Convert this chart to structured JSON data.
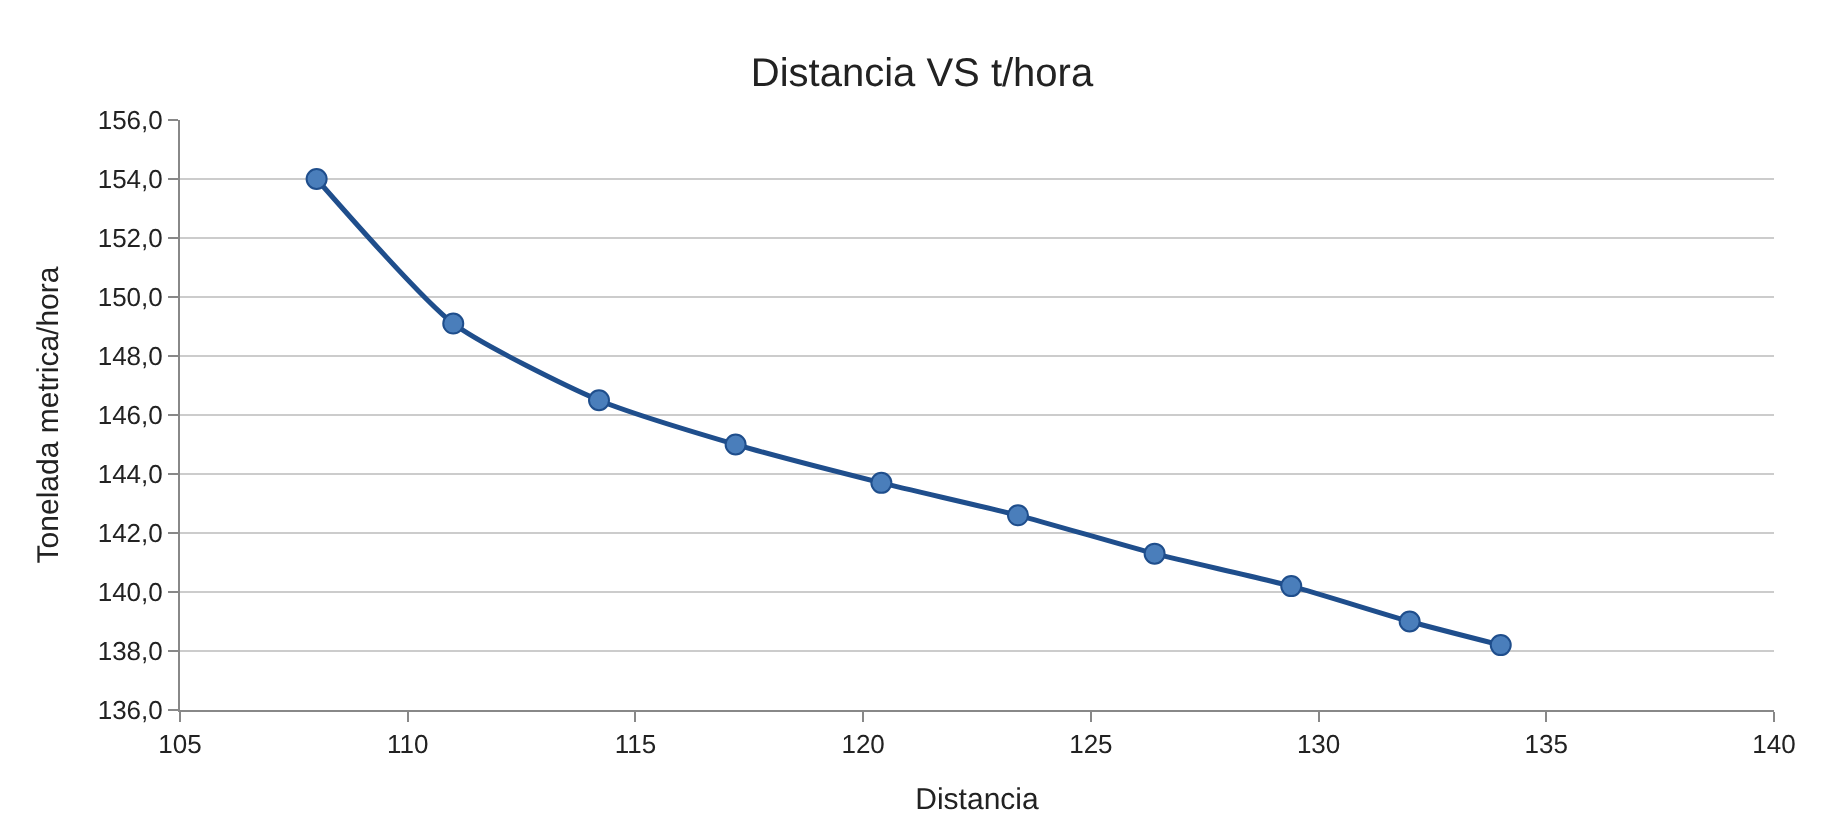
{
  "chart_data": {
    "type": "line",
    "title": "Distancia VS t/hora",
    "xlabel": "Distancia",
    "ylabel": "Tonelada metrica/hora",
    "x": [
      108.0,
      111.0,
      114.2,
      117.2,
      120.4,
      123.4,
      126.4,
      129.4,
      132.0,
      134.0
    ],
    "series": [
      {
        "color": "#1f4e8c",
        "values": [
          154.0,
          149.1,
          146.5,
          145.0,
          143.7,
          142.6,
          141.3,
          140.2,
          139.0,
          138.2
        ]
      }
    ],
    "xlim": [
      105,
      140
    ],
    "xticks": [
      105,
      110,
      115,
      120,
      125,
      130,
      135,
      140
    ],
    "ylim": [
      136,
      156
    ],
    "yticks": [
      {
        "value": 136,
        "label": "136,0"
      },
      {
        "value": 138,
        "label": "138,0"
      },
      {
        "value": 140,
        "label": "140,0"
      },
      {
        "value": 142,
        "label": "142,0"
      },
      {
        "value": 144,
        "label": "144,0"
      },
      {
        "value": 146,
        "label": "146,0"
      },
      {
        "value": 148,
        "label": "148,0"
      },
      {
        "value": 150,
        "label": "150,0"
      },
      {
        "value": 152,
        "label": "152,0"
      },
      {
        "value": 154,
        "label": "154,0"
      },
      {
        "value": 156,
        "label": "156,0"
      }
    ],
    "grid": "y",
    "marker": "circle",
    "line_style": "solid",
    "legend": false
  }
}
